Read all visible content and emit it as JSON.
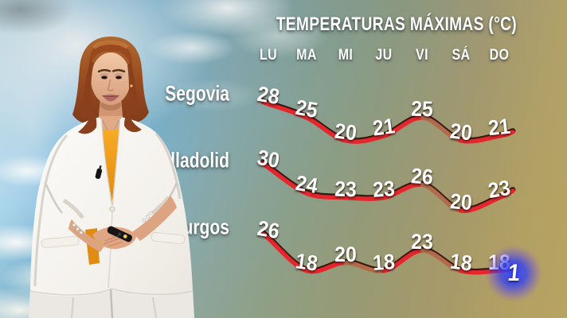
{
  "chart_data": {
    "type": "line",
    "title": "TEMPERATURAS MÁXIMAS (°C)",
    "unit": "°C",
    "x_labels_days": [
      "LU",
      "MA",
      "MI",
      "JU",
      "VI",
      "SÁ",
      "DO"
    ],
    "series": [
      {
        "name": "Segovia",
        "values": [
          28,
          25,
          20,
          21,
          25,
          20,
          21
        ]
      },
      {
        "name": "Valladolid",
        "values": [
          30,
          24,
          23,
          23,
          26,
          20,
          23
        ]
      },
      {
        "name": "Burgos",
        "values": [
          26,
          18,
          20,
          18,
          23,
          18,
          18
        ]
      }
    ],
    "grid": false,
    "legend_position": "none",
    "line_color_front": "#e6262d",
    "line_color_back": "#b26a4a",
    "line_edge_color": "#35100a",
    "value_label_color": "#ffffff"
  },
  "branding": {
    "channel_logo_text": "1",
    "logo_glow_color": "#2d3cfa"
  }
}
